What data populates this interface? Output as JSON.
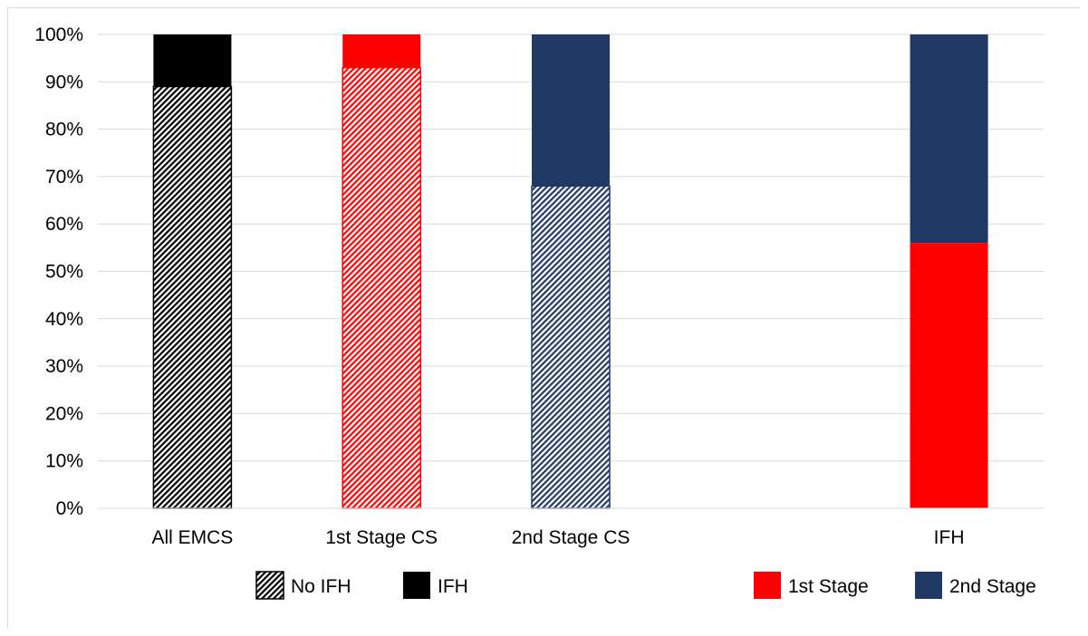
{
  "chart_data": {
    "type": "bar",
    "stacked": true,
    "percent_axis": true,
    "ylim": [
      0,
      100
    ],
    "y_ticks": [
      "0%",
      "10%",
      "20%",
      "30%",
      "40%",
      "50%",
      "60%",
      "70%",
      "80%",
      "90%",
      "100%"
    ],
    "grid": true,
    "categories": [
      "All EMCS",
      "1st Stage CS",
      "2nd Stage CS",
      "",
      "IFH"
    ],
    "bars": [
      {
        "category": "All EMCS",
        "segments": [
          {
            "series": "No IFH",
            "value": 89,
            "color": "#000000",
            "hatched": true
          },
          {
            "series": "IFH",
            "value": 11,
            "color": "#000000",
            "hatched": false
          }
        ]
      },
      {
        "category": "1st Stage CS",
        "segments": [
          {
            "series": "No IFH",
            "value": 93,
            "color": "#ff0000",
            "hatched": true
          },
          {
            "series": "IFH",
            "value": 7,
            "color": "#ff0000",
            "hatched": false
          }
        ]
      },
      {
        "category": "2nd Stage CS",
        "segments": [
          {
            "series": "No IFH",
            "value": 68,
            "color": "#1f3864",
            "hatched": true
          },
          {
            "series": "IFH",
            "value": 32,
            "color": "#1f3864",
            "hatched": false
          }
        ]
      },
      {
        "category": "IFH",
        "segments": [
          {
            "series": "1st Stage",
            "value": 56,
            "color": "#ff0000",
            "hatched": false
          },
          {
            "series": "2nd Stage",
            "value": 44,
            "color": "#1f3864",
            "hatched": false
          }
        ]
      }
    ],
    "legend": {
      "placement": "bottom",
      "left_items": [
        {
          "label": "No IFH",
          "color": "#000000",
          "hatched": true
        },
        {
          "label": "IFH",
          "color": "#000000",
          "hatched": false
        }
      ],
      "right_items": [
        {
          "label": "1st Stage",
          "color": "#ff0000",
          "hatched": false
        },
        {
          "label": "2nd Stage",
          "color": "#1f3864",
          "hatched": false
        }
      ]
    }
  }
}
